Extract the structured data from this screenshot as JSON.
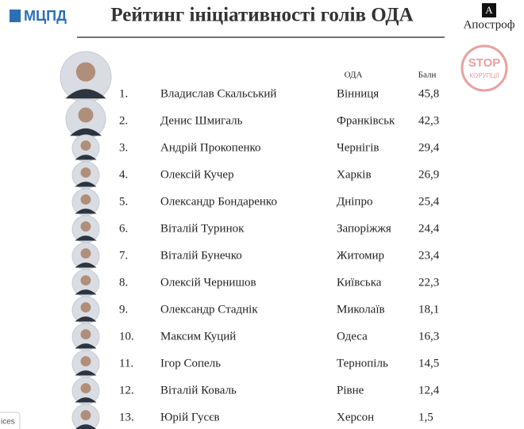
{
  "header": {
    "logo": "МЦПД",
    "title": "Рейтинг ініціативності голів ОДА",
    "brand": "Апостроф",
    "stamp": [
      "STOP",
      "КОРУПЦІЇ"
    ],
    "corner_text": "ices"
  },
  "table": {
    "columns": [
      "ОДА",
      "Бали"
    ],
    "rows": [
      [
        "1.",
        "Владислав Скальський",
        "Вінниця",
        "45,8"
      ],
      [
        "2.",
        "Денис Шмигаль",
        "Франківськ",
        "42,3"
      ],
      [
        "3.",
        "Андрій Прокопенко",
        "Чернігів",
        "29,4"
      ],
      [
        "4.",
        "Олексій Кучер",
        "Харків",
        "26,9"
      ],
      [
        "5.",
        "Олександр Бондаренко",
        "Дніпро",
        "25,4"
      ],
      [
        "6.",
        "Віталій Туринок",
        "Запоріжжя",
        "24,4"
      ],
      [
        "7.",
        "Віталій Бунечко",
        "Житомир",
        "23,4"
      ],
      [
        "8.",
        "Олексій Чернишов",
        "Київська",
        "22,3"
      ],
      [
        "9.",
        "Олександр Стаднік",
        "Миколаїв",
        "18,1"
      ],
      [
        "10.",
        "Максим Куций",
        "Одеса",
        "16,3"
      ],
      [
        "11.",
        "Ігор Сопель",
        "Тернопіль",
        "14,5"
      ],
      [
        "12.",
        "Віталій Коваль",
        "Рівне",
        "12,4"
      ],
      [
        "13.",
        "Юрій Гусєв",
        "Херсон",
        "1,5"
      ]
    ]
  }
}
